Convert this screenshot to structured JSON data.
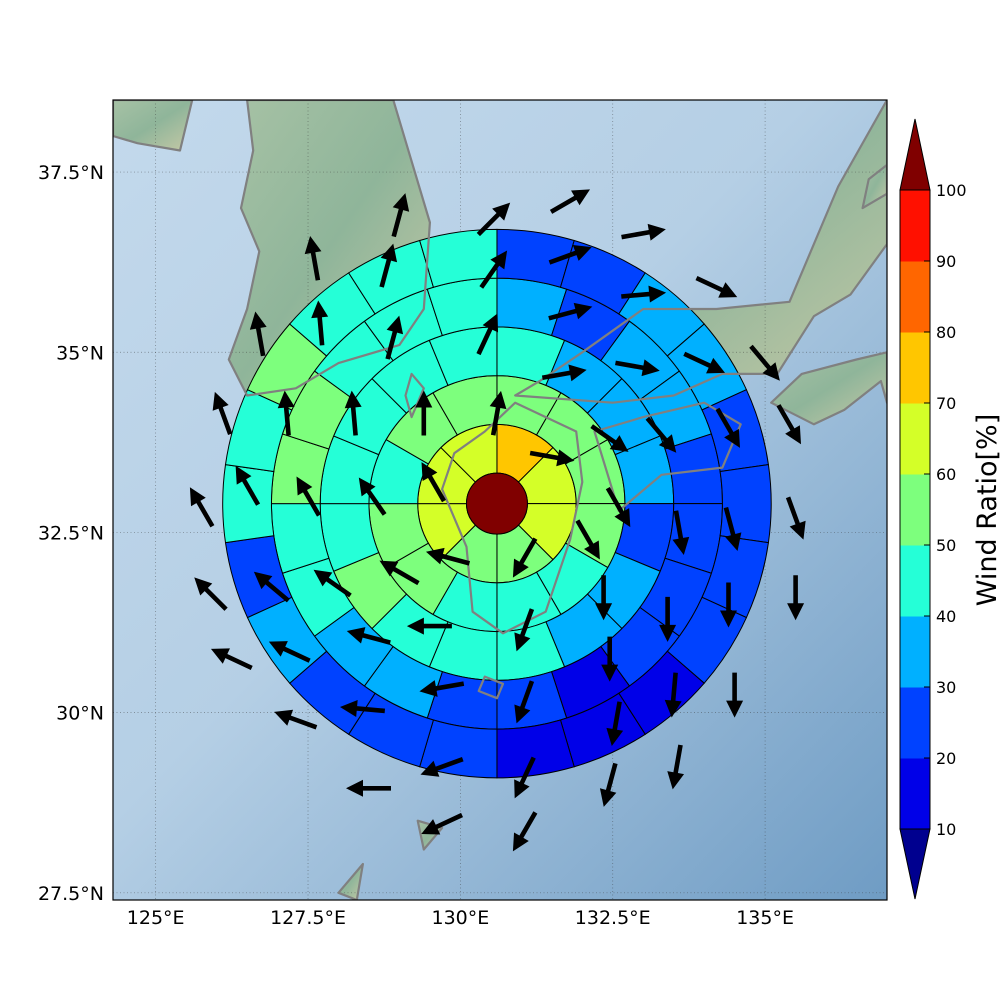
{
  "map": {
    "lon_range": [
      124.3,
      137.0
    ],
    "lat_range": [
      27.4,
      38.5
    ],
    "lon_ticks": [
      {
        "value": 125.0,
        "label": "125°E"
      },
      {
        "value": 127.5,
        "label": "127.5°E"
      },
      {
        "value": 130.0,
        "label": "130°E"
      },
      {
        "value": 132.5,
        "label": "132.5°E"
      },
      {
        "value": 135.0,
        "label": "135°E"
      }
    ],
    "lat_ticks": [
      {
        "value": 27.5,
        "label": "27.5°N"
      },
      {
        "value": 30.0,
        "label": "30°N"
      },
      {
        "value": 32.5,
        "label": "32.5°N"
      },
      {
        "value": 35.0,
        "label": "35°N"
      },
      {
        "value": 37.5,
        "label": "37.5°N"
      }
    ],
    "grid": true,
    "coastline_color": "#808080",
    "ocean_color": "#a7c4dd",
    "land_color": "#8fb59a"
  },
  "chart_data": {
    "type": "polar-sector-map",
    "center": {
      "lon": 130.6,
      "lat": 32.9
    },
    "center_value": 100,
    "rings": [
      {
        "inner_deg": 0.5,
        "outer_deg": 1.3,
        "values": [
          70,
          60,
          60,
          50,
          50,
          60,
          60,
          60
        ]
      },
      {
        "inner_deg": 1.3,
        "outer_deg": 2.1,
        "values": [
          50,
          50,
          50,
          50,
          40,
          40,
          40,
          50,
          50,
          40,
          50,
          50
        ]
      },
      {
        "inner_deg": 2.1,
        "outer_deg": 2.9,
        "values": [
          40,
          30,
          30,
          30,
          20,
          30,
          30,
          40,
          40,
          40,
          50,
          40,
          40,
          40,
          40,
          40
        ]
      },
      {
        "inner_deg": 2.9,
        "outer_deg": 3.7,
        "values": [
          30,
          20,
          30,
          30,
          20,
          20,
          20,
          20,
          10,
          20,
          20,
          30,
          30,
          40,
          40,
          50,
          50,
          40,
          40,
          40
        ]
      },
      {
        "inner_deg": 3.7,
        "outer_deg": 4.5,
        "values": [
          20,
          20,
          30,
          30,
          20,
          20,
          20,
          20,
          10,
          10,
          10,
          20,
          20,
          20,
          30,
          20,
          40,
          40,
          50,
          40,
          40,
          40
        ]
      }
    ],
    "sector_order": "clockwise from north",
    "arrows": [
      {
        "lon": 130.6,
        "lat": 34.15,
        "dir_deg": 10
      },
      {
        "lon": 130.45,
        "lat": 35.25,
        "dir_deg": 25
      },
      {
        "lon": 130.55,
        "lat": 36.15,
        "dir_deg": 35
      },
      {
        "lon": 130.55,
        "lat": 36.85,
        "dir_deg": 45
      },
      {
        "lon": 129.0,
        "lat": 36.9,
        "dir_deg": 15
      },
      {
        "lon": 127.6,
        "lat": 36.3,
        "dir_deg": -10
      },
      {
        "lon": 128.8,
        "lat": 36.2,
        "dir_deg": 15
      },
      {
        "lon": 126.7,
        "lat": 35.25,
        "dir_deg": -10
      },
      {
        "lon": 127.7,
        "lat": 35.4,
        "dir_deg": -5
      },
      {
        "lon": 128.9,
        "lat": 35.2,
        "dir_deg": 15
      },
      {
        "lon": 126.1,
        "lat": 34.15,
        "dir_deg": -20
      },
      {
        "lon": 127.15,
        "lat": 34.15,
        "dir_deg": -5
      },
      {
        "lon": 128.25,
        "lat": 34.15,
        "dir_deg": -5
      },
      {
        "lon": 129.4,
        "lat": 34.15,
        "dir_deg": 0
      },
      {
        "lon": 125.75,
        "lat": 32.85,
        "dir_deg": -30
      },
      {
        "lon": 126.5,
        "lat": 33.15,
        "dir_deg": -30
      },
      {
        "lon": 127.5,
        "lat": 33.0,
        "dir_deg": -30
      },
      {
        "lon": 128.55,
        "lat": 33.0,
        "dir_deg": -35
      },
      {
        "lon": 129.55,
        "lat": 33.2,
        "dir_deg": -30
      },
      {
        "lon": 125.9,
        "lat": 31.65,
        "dir_deg": -45
      },
      {
        "lon": 126.9,
        "lat": 31.75,
        "dir_deg": -50
      },
      {
        "lon": 127.9,
        "lat": 31.8,
        "dir_deg": -55
      },
      {
        "lon": 129.0,
        "lat": 31.95,
        "dir_deg": -60
      },
      {
        "lon": 129.8,
        "lat": 32.15,
        "dir_deg": -75
      },
      {
        "lon": 126.25,
        "lat": 30.75,
        "dir_deg": -65
      },
      {
        "lon": 127.2,
        "lat": 30.85,
        "dir_deg": -65
      },
      {
        "lon": 128.5,
        "lat": 31.05,
        "dir_deg": -75
      },
      {
        "lon": 129.5,
        "lat": 31.2,
        "dir_deg": -90
      },
      {
        "lon": 127.3,
        "lat": 29.9,
        "dir_deg": -70
      },
      {
        "lon": 128.4,
        "lat": 30.05,
        "dir_deg": -85
      },
      {
        "lon": 129.7,
        "lat": 30.35,
        "dir_deg": -100
      },
      {
        "lon": 128.5,
        "lat": 28.95,
        "dir_deg": -90
      },
      {
        "lon": 129.7,
        "lat": 29.25,
        "dir_deg": -110
      },
      {
        "lon": 129.7,
        "lat": 28.45,
        "dir_deg": -115
      },
      {
        "lon": 131.05,
        "lat": 32.15,
        "dir_deg": 210
      },
      {
        "lon": 131.05,
        "lat": 31.15,
        "dir_deg": 200
      },
      {
        "lon": 131.05,
        "lat": 30.15,
        "dir_deg": 200
      },
      {
        "lon": 131.05,
        "lat": 29.1,
        "dir_deg": 205
      },
      {
        "lon": 131.05,
        "lat": 28.35,
        "dir_deg": 210
      },
      {
        "lon": 132.45,
        "lat": 29.0,
        "dir_deg": 195
      },
      {
        "lon": 132.55,
        "lat": 29.85,
        "dir_deg": 190
      },
      {
        "lon": 132.45,
        "lat": 30.75,
        "dir_deg": 180
      },
      {
        "lon": 132.35,
        "lat": 31.6,
        "dir_deg": 180
      },
      {
        "lon": 133.55,
        "lat": 29.25,
        "dir_deg": 190
      },
      {
        "lon": 133.5,
        "lat": 30.25,
        "dir_deg": 185
      },
      {
        "lon": 133.4,
        "lat": 31.3,
        "dir_deg": 180
      },
      {
        "lon": 134.5,
        "lat": 30.25,
        "dir_deg": 180
      },
      {
        "lon": 134.4,
        "lat": 31.5,
        "dir_deg": 180
      },
      {
        "lon": 135.5,
        "lat": 31.6,
        "dir_deg": 180
      },
      {
        "lon": 133.6,
        "lat": 32.5,
        "dir_deg": 170
      },
      {
        "lon": 134.45,
        "lat": 32.55,
        "dir_deg": 165
      },
      {
        "lon": 135.5,
        "lat": 32.7,
        "dir_deg": 160
      },
      {
        "lon": 132.1,
        "lat": 32.4,
        "dir_deg": 150
      },
      {
        "lon": 132.6,
        "lat": 32.85,
        "dir_deg": 150
      },
      {
        "lon": 131.5,
        "lat": 33.55,
        "dir_deg": 100
      },
      {
        "lon": 132.45,
        "lat": 33.8,
        "dir_deg": 125
      },
      {
        "lon": 133.3,
        "lat": 33.85,
        "dir_deg": 140
      },
      {
        "lon": 134.4,
        "lat": 33.95,
        "dir_deg": 150
      },
      {
        "lon": 135.4,
        "lat": 34.0,
        "dir_deg": 150
      },
      {
        "lon": 131.7,
        "lat": 34.7,
        "dir_deg": 80
      },
      {
        "lon": 132.9,
        "lat": 34.8,
        "dir_deg": 100
      },
      {
        "lon": 134.0,
        "lat": 34.85,
        "dir_deg": 115
      },
      {
        "lon": 135.0,
        "lat": 34.85,
        "dir_deg": 140
      },
      {
        "lon": 131.8,
        "lat": 35.55,
        "dir_deg": 75
      },
      {
        "lon": 133.0,
        "lat": 35.8,
        "dir_deg": 85
      },
      {
        "lon": 134.2,
        "lat": 35.9,
        "dir_deg": 115
      },
      {
        "lon": 131.8,
        "lat": 36.35,
        "dir_deg": 70
      },
      {
        "lon": 133.0,
        "lat": 36.65,
        "dir_deg": 80
      },
      {
        "lon": 131.8,
        "lat": 37.1,
        "dir_deg": 60
      }
    ],
    "colorbar": {
      "label": "Wind Ratio[%]",
      "ticks": [
        10,
        20,
        30,
        40,
        50,
        60,
        70,
        80,
        90,
        100
      ],
      "extend": "both",
      "colors": [
        "#00008f",
        "#0000e8",
        "#0042ff",
        "#00b0ff",
        "#25ffd7",
        "#7dff7d",
        "#d4ff28",
        "#ffc600",
        "#ff6600",
        "#ff1000",
        "#800000"
      ]
    }
  }
}
